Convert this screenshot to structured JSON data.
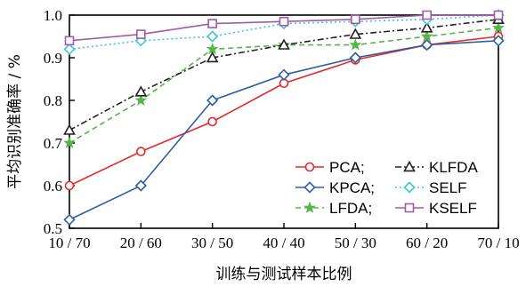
{
  "chart_data": {
    "type": "line",
    "title": "",
    "xlabel": "训练与测试样本比例",
    "ylabel": "平均识别准确率 / %",
    "categories": [
      "10 / 70",
      "20 / 60",
      "30 / 50",
      "40 / 40",
      "50 / 30",
      "60 / 20",
      "70 / 10"
    ],
    "ylim": [
      0.5,
      1.0
    ],
    "yticks": [
      "0.5",
      "0.6",
      "0.7",
      "0.8",
      "0.9",
      "1.0"
    ],
    "grid": false,
    "legend_position": "bottom-right",
    "series": [
      {
        "name": "PCA;",
        "values": [
          0.6,
          0.68,
          0.75,
          0.84,
          0.895,
          0.93,
          0.95
        ],
        "color": "#e8292c",
        "dash": "solid",
        "marker": "circle"
      },
      {
        "name": "KPCA;",
        "values": [
          0.52,
          0.6,
          0.8,
          0.86,
          0.9,
          0.93,
          0.94
        ],
        "color": "#2f5ea8",
        "dash": "solid",
        "marker": "diamond"
      },
      {
        "name": "LFDA;",
        "values": [
          0.7,
          0.8,
          0.92,
          0.93,
          0.93,
          0.95,
          0.97
        ],
        "color": "#55b548",
        "dash": "dashed",
        "marker": "star"
      },
      {
        "name": "KLFDA",
        "values": [
          0.73,
          0.82,
          0.9,
          0.93,
          0.955,
          0.97,
          0.99
        ],
        "color": "#222222",
        "dash": "dashdot",
        "marker": "triangle"
      },
      {
        "name": "SELF",
        "values": [
          0.92,
          0.94,
          0.95,
          0.98,
          0.985,
          0.99,
          1.0
        ],
        "color": "#3fc6dc",
        "dash": "dotted",
        "marker": "diamond-open"
      },
      {
        "name": "KSELF",
        "values": [
          0.94,
          0.955,
          0.98,
          0.985,
          0.99,
          1.0,
          1.0
        ],
        "color": "#a35aa8",
        "dash": "solid",
        "marker": "square"
      }
    ]
  }
}
